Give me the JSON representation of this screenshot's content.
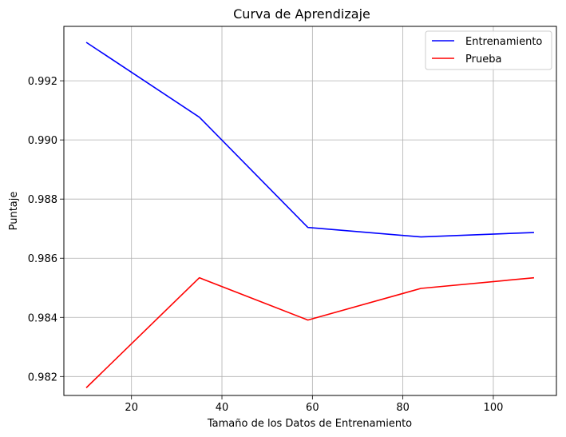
{
  "chart_data": {
    "type": "line",
    "title": "Curva de Aprendizaje",
    "xlabel": "Tamaño de los Datos de Entrenamiento",
    "ylabel": "Puntaje",
    "xlim": [
      5.05,
      113.95
    ],
    "ylim": [
      0.98136,
      0.99384
    ],
    "xticks": [
      20,
      40,
      60,
      80,
      100
    ],
    "yticks": [
      0.982,
      0.984,
      0.986,
      0.988,
      0.99,
      0.992
    ],
    "grid": true,
    "legend_position": "top-right",
    "series": [
      {
        "name": "Entrenamiento",
        "color": "#0000ff",
        "x": [
          10,
          35,
          59,
          84,
          109
        ],
        "y": [
          0.9933,
          0.99077,
          0.98704,
          0.98672,
          0.98687
        ]
      },
      {
        "name": "Prueba",
        "color": "#ff0000",
        "x": [
          10,
          35,
          59,
          84,
          109
        ],
        "y": [
          0.98162,
          0.98534,
          0.98391,
          0.98498,
          0.98534
        ]
      }
    ]
  }
}
